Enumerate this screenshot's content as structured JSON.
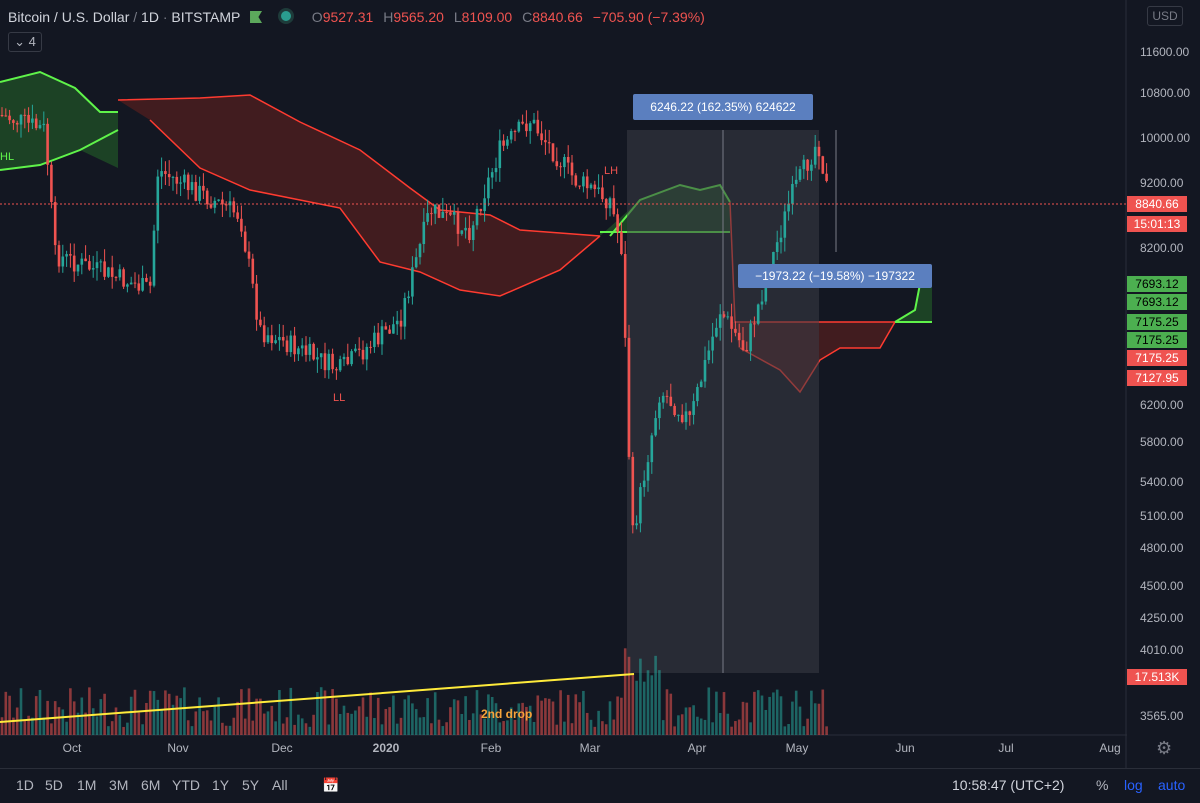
{
  "header": {
    "symbol": "Bitcoin / U.S. Dollar",
    "interval": "1D",
    "exchange": "BITSTAMP",
    "open_label": "O",
    "open": "9527.31",
    "high_label": "H",
    "high": "9565.20",
    "low_label": "L",
    "low": "8109.00",
    "close_label": "C",
    "close": "8840.66",
    "change": "−705.90 (−7.39%)",
    "indicator_count": "4",
    "currency": "USD",
    "flag_icon": "flag-icon",
    "status_icon": "status-dot-icon"
  },
  "chart_data": {
    "type": "candlestick",
    "title": "Bitcoin / U.S. Dollar, 1D, BITSTAMP",
    "y_scale": "log",
    "y_ticks": [
      "11600.00",
      "10800.00",
      "10000.00",
      "9200.00",
      "8200.00",
      "6200.00",
      "5800.00",
      "5400.00",
      "5100.00",
      "4800.00",
      "4500.00",
      "4250.00",
      "4010.00",
      "3565.00"
    ],
    "x_ticks": [
      "Oct",
      "Nov",
      "Dec",
      "2020",
      "Feb",
      "Mar",
      "Apr",
      "May",
      "Jun",
      "Jul",
      "Aug"
    ],
    "price_tags": [
      {
        "value": "8840.66",
        "color": "#ef5350"
      },
      {
        "value": "15:01:13",
        "color": "#ef5350"
      },
      {
        "value": "7693.12",
        "color": "#4caf50"
      },
      {
        "value": "7693.12",
        "color": "#4caf50"
      },
      {
        "value": "7175.25",
        "color": "#4caf50"
      },
      {
        "value": "7175.25",
        "color": "#4caf50"
      },
      {
        "value": "7175.25",
        "color": "#ef5350"
      },
      {
        "value": "7127.95",
        "color": "#ef5350"
      },
      {
        "value": "17.513K",
        "color": "#ef5350"
      }
    ],
    "annotations": {
      "range_up": "6246.22 (162.35%) 624622",
      "range_down": "−1973.22 (−19.58%) −197322",
      "second_drop": "2nd drop",
      "hl": "HL",
      "ll": "LL",
      "lh": "LH"
    },
    "ohlc_last": {
      "open": 9527.31,
      "high": 9565.2,
      "low": 8109.0,
      "close": 8840.66
    },
    "colors": {
      "up": "#26a69a",
      "down": "#ef5350",
      "cloud_up": "#5ff34a",
      "cloud_down": "#ff3b30",
      "trendline": "#ffeb3b",
      "annotation": "#f7a33a"
    }
  },
  "footer": {
    "timeframes": [
      "1D",
      "5D",
      "1M",
      "3M",
      "6M",
      "YTD",
      "1Y",
      "5Y",
      "All"
    ],
    "calendar_icon": "calendar-icon",
    "clock": "10:58:47 (UTC+2)",
    "percent": "%",
    "log": "log",
    "auto": "auto"
  }
}
